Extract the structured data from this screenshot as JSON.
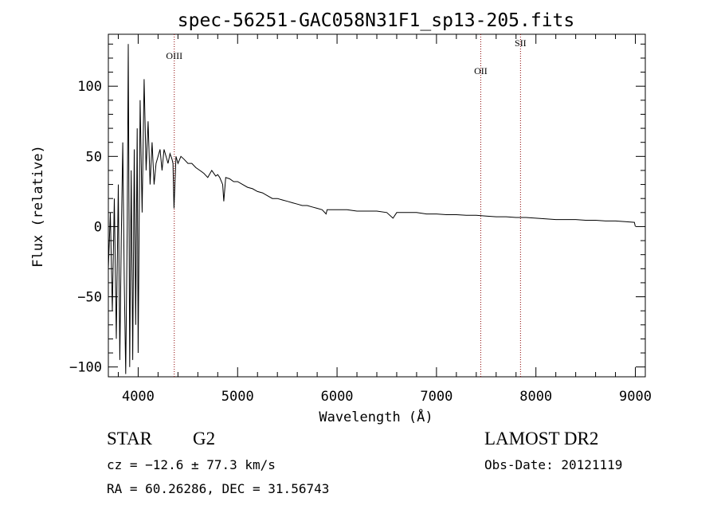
{
  "chart_data": {
    "type": "line",
    "title": "spec-56251-GAC058N31F1_sp13-205.fits",
    "xlabel": "Wavelength (Å)",
    "ylabel": "Flux (relative)",
    "xlim": [
      3700,
      9100
    ],
    "ylim": [
      -107,
      137
    ],
    "xticks": [
      4000,
      5000,
      6000,
      7000,
      8000,
      9000
    ],
    "yticks": [
      -100,
      -50,
      0,
      50,
      100
    ],
    "grid": false,
    "lines": [
      {
        "label": "OIII",
        "x": 4363
      },
      {
        "label": "OII",
        "x": 7445
      },
      {
        "label": "SII",
        "x": 7845
      }
    ],
    "series": [
      {
        "x": [
          3700,
          3720,
          3740,
          3760,
          3780,
          3800,
          3815,
          3830,
          3845,
          3860,
          3875,
          3890,
          3900,
          3915,
          3930,
          3945,
          3960,
          3975,
          3990,
          4000,
          4020,
          4040,
          4060,
          4080,
          4100,
          4120,
          4140,
          4160,
          4180,
          4200,
          4220,
          4240,
          4260,
          4280,
          4300,
          4320,
          4340,
          4350,
          4360,
          4380,
          4400,
          4430,
          4460,
          4500,
          4540,
          4580,
          4620,
          4660,
          4700,
          4740,
          4780,
          4800,
          4820,
          4850,
          4861,
          4880,
          4920,
          4960,
          5000,
          5050,
          5100,
          5150,
          5200,
          5250,
          5300,
          5350,
          5400,
          5450,
          5500,
          5550,
          5600,
          5650,
          5700,
          5750,
          5800,
          5850,
          5890,
          5900,
          5950,
          6000,
          6100,
          6200,
          6300,
          6400,
          6500,
          6563,
          6600,
          6700,
          6800,
          6900,
          7000,
          7100,
          7200,
          7300,
          7400,
          7500,
          7600,
          7700,
          7800,
          7900,
          8000,
          8100,
          8200,
          8300,
          8400,
          8500,
          8600,
          8700,
          8800,
          8900,
          8990,
          9000
        ],
        "y": [
          -30,
          10,
          -60,
          20,
          -80,
          30,
          -95,
          -10,
          60,
          -40,
          -105,
          0,
          130,
          -100,
          40,
          -95,
          55,
          -70,
          70,
          -90,
          90,
          10,
          105,
          40,
          75,
          30,
          60,
          30,
          45,
          50,
          55,
          40,
          55,
          50,
          45,
          52,
          48,
          45,
          13,
          50,
          45,
          50,
          48,
          45,
          45,
          42,
          40,
          38,
          35,
          40,
          36,
          37,
          35,
          30,
          18,
          35,
          34,
          32,
          32,
          30,
          28,
          27,
          25,
          24,
          22,
          20,
          20,
          19,
          18,
          17,
          16,
          15,
          15,
          14,
          13,
          12,
          9,
          12,
          12,
          12,
          12,
          11,
          11,
          11,
          10,
          6,
          10,
          10,
          10,
          9,
          9,
          8.5,
          8.5,
          8,
          8,
          7.5,
          7,
          7,
          6.5,
          6.5,
          6,
          5.5,
          5,
          5,
          5,
          4.5,
          4.5,
          4,
          4,
          3.5,
          3,
          0
        ]
      }
    ]
  },
  "annotations": {
    "object_class": "STAR",
    "subclass": "G2",
    "survey": "LAMOST DR2",
    "cz": "cz = −12.6 ± 77.3 km/s",
    "obs_date": "Obs-Date: 20121119",
    "coords": "RA =  60.26286, DEC =  31.56743"
  }
}
